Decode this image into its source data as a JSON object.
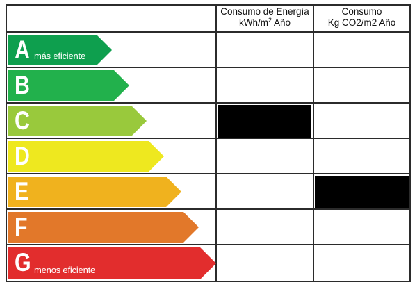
{
  "header": {
    "col1_line1": "Consumo de Energía",
    "col1_line2": "kWh/m",
    "col1_sup": "2",
    "col1_line2_tail": " Año",
    "col2_line1": "Consumo",
    "col2_line2": "Kg CO2/m2 Año"
  },
  "ratings": [
    {
      "letter": "A",
      "label": "más eficiente",
      "color": "#0e9f4e"
    },
    {
      "letter": "B",
      "label": "",
      "color": "#22b14c"
    },
    {
      "letter": "C",
      "label": "",
      "color": "#99c93c"
    },
    {
      "letter": "D",
      "label": "",
      "color": "#eee81f"
    },
    {
      "letter": "E",
      "label": "",
      "color": "#f0b21e"
    },
    {
      "letter": "F",
      "label": "",
      "color": "#e2782a"
    },
    {
      "letter": "G",
      "label": "menos eficiente",
      "color": "#e22d2d"
    }
  ],
  "selected": {
    "energy_consumption": "C",
    "co2_emissions": "E"
  }
}
